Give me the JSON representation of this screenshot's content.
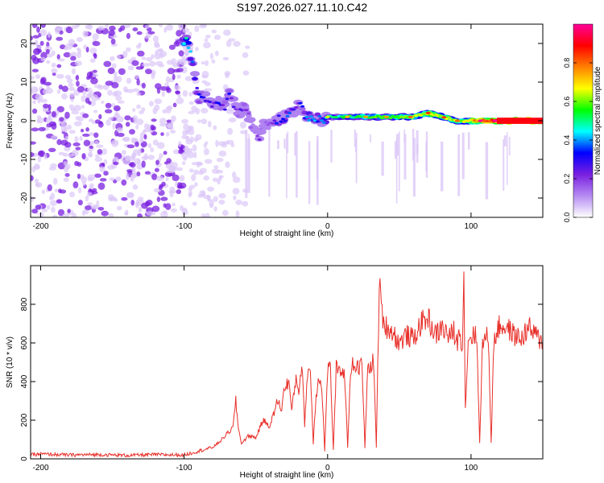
{
  "title": "S197.2026.027.11.10.C42",
  "colors": {
    "axis": "#000000",
    "snr_line": "#e8302a",
    "scatter_purple": "#7a1fe0",
    "scatter_light": "#dcc8f8"
  },
  "chart_data": [
    {
      "type": "heatmap",
      "name": "spectrogram",
      "title": "S197.2026.027.11.10.C42",
      "xlabel": "Height of straight line (km)",
      "ylabel": "Frequency (Hz)",
      "xlim": [
        -207,
        150
      ],
      "ylim": [
        -25,
        25
      ],
      "xticks": [
        -200,
        -100,
        0,
        100
      ],
      "yticks": [
        -20,
        -10,
        0,
        10,
        20
      ],
      "colorbar": {
        "label": "Normalized spectral amplitude",
        "range": [
          0,
          1
        ],
        "ticks": [
          "0.0",
          "0.2",
          "0.4",
          "0.6",
          "0.8"
        ],
        "tick_values": [
          0,
          0.2,
          0.4,
          0.6,
          0.8
        ],
        "colors": [
          "#ffffff",
          "#b58cf2",
          "#7a1fe0",
          "#0000ff",
          "#00ffff",
          "#00ff00",
          "#ffff00",
          "#ff8000",
          "#ff0000",
          "#ff0099"
        ]
      },
      "ridge": {
        "description": "frequency of the dominant spectral peak vs height",
        "x": [
          -100,
          -97,
          -90,
          -85,
          -80,
          -76,
          -72,
          -69,
          -66,
          -62,
          -58,
          -55,
          -52,
          -48,
          -44,
          -40,
          -35,
          -30,
          -25,
          -20,
          -15,
          -10,
          -5,
          0,
          10,
          20,
          30,
          40,
          50,
          60,
          70,
          80,
          90,
          100,
          110,
          120,
          130,
          140,
          150
        ],
        "y": [
          21,
          20,
          6,
          6,
          4,
          5,
          3,
          8,
          5,
          2,
          4,
          1,
          -2,
          -4,
          -1,
          -1,
          0,
          1,
          2,
          4,
          1,
          1,
          0,
          1,
          1,
          1,
          1,
          1,
          1,
          1,
          2,
          1,
          0,
          0,
          0,
          0,
          0,
          0,
          0
        ],
        "amplitude": [
          0.5,
          0.45,
          0.3,
          0.25,
          0.25,
          0.3,
          0.25,
          0.3,
          0.25,
          0.2,
          0.25,
          0.2,
          0.15,
          0.2,
          0.15,
          0.2,
          0.3,
          0.35,
          0.3,
          0.25,
          0.4,
          0.4,
          0.35,
          0.45,
          0.5,
          0.55,
          0.55,
          0.55,
          0.6,
          0.6,
          0.65,
          0.65,
          0.6,
          0.7,
          0.85,
          0.85,
          0.9,
          0.9,
          0.9
        ]
      },
      "noise_region_x": [
        -207,
        -55
      ]
    },
    {
      "type": "line",
      "name": "snr",
      "title": "",
      "xlabel": "Height of straight line (km)",
      "ylabel": "SNR (10 * v/v)",
      "xlim": [
        -207,
        150
      ],
      "ylim": [
        0,
        1000
      ],
      "xticks": [
        -200,
        -100,
        0,
        100
      ],
      "yticks": [
        0,
        200,
        400,
        600,
        800
      ],
      "series": [
        {
          "name": "SNR",
          "x": [
            -207,
            -200,
            -180,
            -160,
            -140,
            -120,
            -100,
            -90,
            -80,
            -75,
            -70,
            -66,
            -64,
            -62,
            -60,
            -55,
            -50,
            -45,
            -40,
            -35,
            -32,
            -30,
            -27,
            -25,
            -22,
            -20,
            -18,
            -16,
            -14,
            -12,
            -10,
            -8,
            -6,
            -4,
            -2,
            0,
            2,
            4,
            6,
            8,
            10,
            12,
            14,
            16,
            18,
            20,
            22,
            24,
            26,
            28,
            30,
            32,
            34,
            36,
            38,
            40,
            45,
            50,
            55,
            60,
            65,
            70,
            75,
            80,
            85,
            88,
            90,
            92,
            94,
            95,
            96,
            98,
            100,
            102,
            104,
            106,
            108,
            110,
            112,
            114,
            116,
            120,
            125,
            130,
            135,
            140,
            145,
            150
          ],
          "y": [
            20,
            25,
            20,
            22,
            18,
            22,
            20,
            40,
            60,
            90,
            130,
            160,
            300,
            150,
            80,
            120,
            110,
            200,
            170,
            300,
            260,
            370,
            400,
            250,
            420,
            350,
            500,
            180,
            450,
            460,
            80,
            330,
            430,
            380,
            40,
            470,
            470,
            40,
            470,
            440,
            470,
            420,
            60,
            470,
            490,
            480,
            470,
            490,
            60,
            470,
            480,
            510,
            60,
            900,
            750,
            690,
            660,
            600,
            640,
            620,
            700,
            730,
            640,
            680,
            630,
            660,
            600,
            650,
            600,
            980,
            250,
            620,
            630,
            650,
            620,
            90,
            600,
            620,
            640,
            90,
            620,
            690,
            680,
            640,
            620,
            680,
            640,
            600
          ]
        }
      ]
    }
  ]
}
